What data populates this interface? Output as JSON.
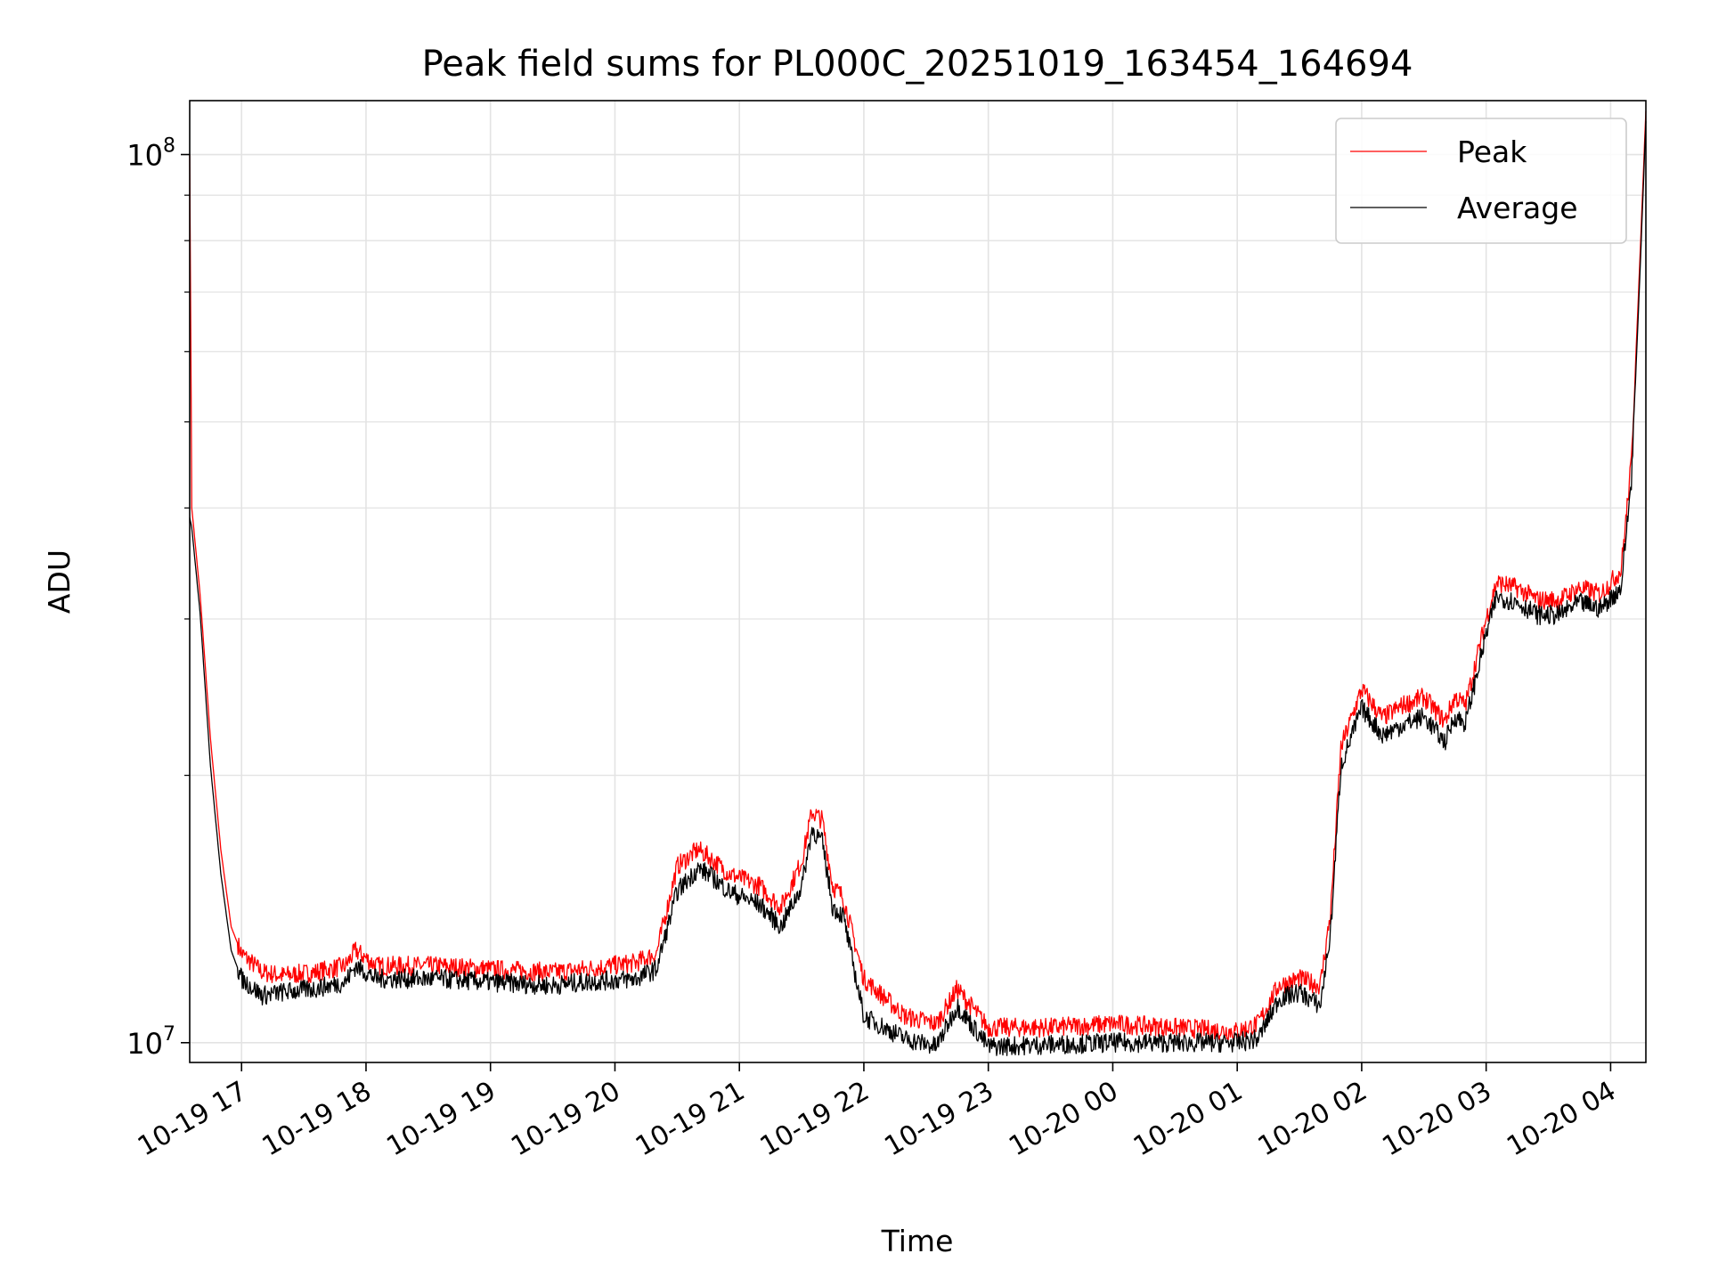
{
  "chart_data": {
    "type": "line",
    "title": "Peak field sums for PL000C_20251019_163454_164694",
    "xlabel": "Time",
    "ylabel": "ADU",
    "yscale": "log",
    "ylim": [
      9500000,
      115000000
    ],
    "xlim": [
      "2025-10-19 16:35",
      "2025-10-20 04:17"
    ],
    "x_ticks": [
      "2025-10-19 17:00",
      "2025-10-19 18:00",
      "2025-10-19 19:00",
      "2025-10-19 20:00",
      "2025-10-19 21:00",
      "2025-10-19 22:00",
      "2025-10-19 23:00",
      "2025-10-20 00:00",
      "2025-10-20 01:00",
      "2025-10-20 02:00",
      "2025-10-20 03:00",
      "2025-10-20 04:00"
    ],
    "x_tick_labels": [
      "10-19 17",
      "10-19 18",
      "10-19 19",
      "10-19 20",
      "10-19 21",
      "10-19 22",
      "10-19 23",
      "10-20 00",
      "10-20 01",
      "10-20 02",
      "10-20 03",
      "10-20 04"
    ],
    "y_ticks": [
      10000000,
      100000000
    ],
    "y_tick_base": "10",
    "y_tick_exponents": [
      "7",
      "8"
    ],
    "grid": true,
    "legend_position": "top-right",
    "series": [
      {
        "name": "Peak",
        "color": "#ff0000",
        "x": [
          "2025-10-19 16:35",
          "2025-10-19 16:36",
          "2025-10-19 16:40",
          "2025-10-19 16:45",
          "2025-10-19 16:50",
          "2025-10-19 16:55",
          "2025-10-19 17:00",
          "2025-10-19 17:10",
          "2025-10-19 17:20",
          "2025-10-19 17:35",
          "2025-10-19 17:50",
          "2025-10-19 17:55",
          "2025-10-19 18:05",
          "2025-10-19 18:35",
          "2025-10-19 19:00",
          "2025-10-19 19:30",
          "2025-10-19 19:45",
          "2025-10-19 20:10",
          "2025-10-19 20:20",
          "2025-10-19 20:30",
          "2025-10-19 20:40",
          "2025-10-19 20:45",
          "2025-10-19 20:55",
          "2025-10-19 21:10",
          "2025-10-19 21:20",
          "2025-10-19 21:30",
          "2025-10-19 21:35",
          "2025-10-19 21:40",
          "2025-10-19 21:45",
          "2025-10-19 21:50",
          "2025-10-19 22:00",
          "2025-10-19 22:20",
          "2025-10-19 22:35",
          "2025-10-19 22:45",
          "2025-10-19 23:00",
          "2025-10-19 23:30",
          "2025-10-20 00:00",
          "2025-10-20 00:30",
          "2025-10-20 01:00",
          "2025-10-20 01:10",
          "2025-10-20 01:20",
          "2025-10-20 01:30",
          "2025-10-20 01:40",
          "2025-10-20 01:45",
          "2025-10-20 01:50",
          "2025-10-20 02:00",
          "2025-10-20 02:10",
          "2025-10-20 02:20",
          "2025-10-20 02:30",
          "2025-10-20 02:40",
          "2025-10-20 02:45",
          "2025-10-20 02:50",
          "2025-10-20 03:00",
          "2025-10-20 03:05",
          "2025-10-20 03:15",
          "2025-10-20 03:25",
          "2025-10-20 03:35",
          "2025-10-20 03:40",
          "2025-10-20 03:45",
          "2025-10-20 03:55",
          "2025-10-20 04:05",
          "2025-10-20 04:10",
          "2025-10-20 04:14",
          "2025-10-20 04:17"
        ],
        "values": [
          100000000,
          40000000,
          32000000,
          22000000,
          16500000,
          13500000,
          12600000,
          12000000,
          11900000,
          12000000,
          12200000,
          12700000,
          12200000,
          12200000,
          12100000,
          12000000,
          12100000,
          12300000,
          12600000,
          15800000,
          16500000,
          16200000,
          15500000,
          15000000,
          14200000,
          16000000,
          18200000,
          17800000,
          15000000,
          14600000,
          11800000,
          10700000,
          10500000,
          11500000,
          10400000,
          10400000,
          10500000,
          10400000,
          10300000,
          10500000,
          11600000,
          11800000,
          11600000,
          14000000,
          21500000,
          25000000,
          23200000,
          24000000,
          24500000,
          23000000,
          24500000,
          24000000,
          30000000,
          33000000,
          32500000,
          31500000,
          31500000,
          32000000,
          32500000,
          32000000,
          34000000,
          45000000,
          75000000,
          112000000
        ]
      },
      {
        "name": "Average",
        "color": "#000000",
        "x": [
          "2025-10-19 16:35",
          "2025-10-19 16:36",
          "2025-10-19 16:40",
          "2025-10-19 16:45",
          "2025-10-19 16:50",
          "2025-10-19 16:55",
          "2025-10-19 17:00",
          "2025-10-19 17:10",
          "2025-10-19 17:20",
          "2025-10-19 17:35",
          "2025-10-19 17:50",
          "2025-10-19 17:55",
          "2025-10-19 18:05",
          "2025-10-19 18:35",
          "2025-10-19 19:00",
          "2025-10-19 19:30",
          "2025-10-19 19:45",
          "2025-10-19 20:10",
          "2025-10-19 20:20",
          "2025-10-19 20:30",
          "2025-10-19 20:40",
          "2025-10-19 20:45",
          "2025-10-19 20:55",
          "2025-10-19 21:10",
          "2025-10-19 21:20",
          "2025-10-19 21:30",
          "2025-10-19 21:35",
          "2025-10-19 21:40",
          "2025-10-19 21:45",
          "2025-10-19 21:50",
          "2025-10-19 22:00",
          "2025-10-19 22:20",
          "2025-10-19 22:35",
          "2025-10-19 22:45",
          "2025-10-19 23:00",
          "2025-10-19 23:30",
          "2025-10-20 00:00",
          "2025-10-20 00:30",
          "2025-10-20 01:00",
          "2025-10-20 01:10",
          "2025-10-20 01:20",
          "2025-10-20 01:30",
          "2025-10-20 01:40",
          "2025-10-20 01:45",
          "2025-10-20 01:50",
          "2025-10-20 02:00",
          "2025-10-20 02:10",
          "2025-10-20 02:20",
          "2025-10-20 02:30",
          "2025-10-20 02:40",
          "2025-10-20 02:45",
          "2025-10-20 02:50",
          "2025-10-20 03:00",
          "2025-10-20 03:05",
          "2025-10-20 03:15",
          "2025-10-20 03:25",
          "2025-10-20 03:35",
          "2025-10-20 03:40",
          "2025-10-20 03:45",
          "2025-10-20 03:55",
          "2025-10-20 04:05",
          "2025-10-20 04:10",
          "2025-10-20 04:14",
          "2025-10-20 04:17"
        ],
        "values": [
          39000000,
          38000000,
          30500000,
          20500000,
          15500000,
          12700000,
          11800000,
          11300000,
          11400000,
          11500000,
          11700000,
          12200000,
          11800000,
          11800000,
          11700000,
          11600000,
          11700000,
          11800000,
          12100000,
          14800000,
          15700000,
          15500000,
          14800000,
          14300000,
          13500000,
          15000000,
          17400000,
          16800000,
          14200000,
          13900000,
          10700000,
          10100000,
          9900000,
          11000000,
          9900000,
          9950000,
          10000000,
          10000000,
          10000000,
          10100000,
          11200000,
          11400000,
          11000000,
          13300000,
          20500000,
          23800000,
          22200000,
          22800000,
          23300000,
          21800000,
          23300000,
          22900000,
          28800000,
          31800000,
          31300000,
          30300000,
          30300000,
          30800000,
          31300000,
          30800000,
          32500000,
          43000000,
          72000000,
          109000000
        ]
      }
    ]
  }
}
